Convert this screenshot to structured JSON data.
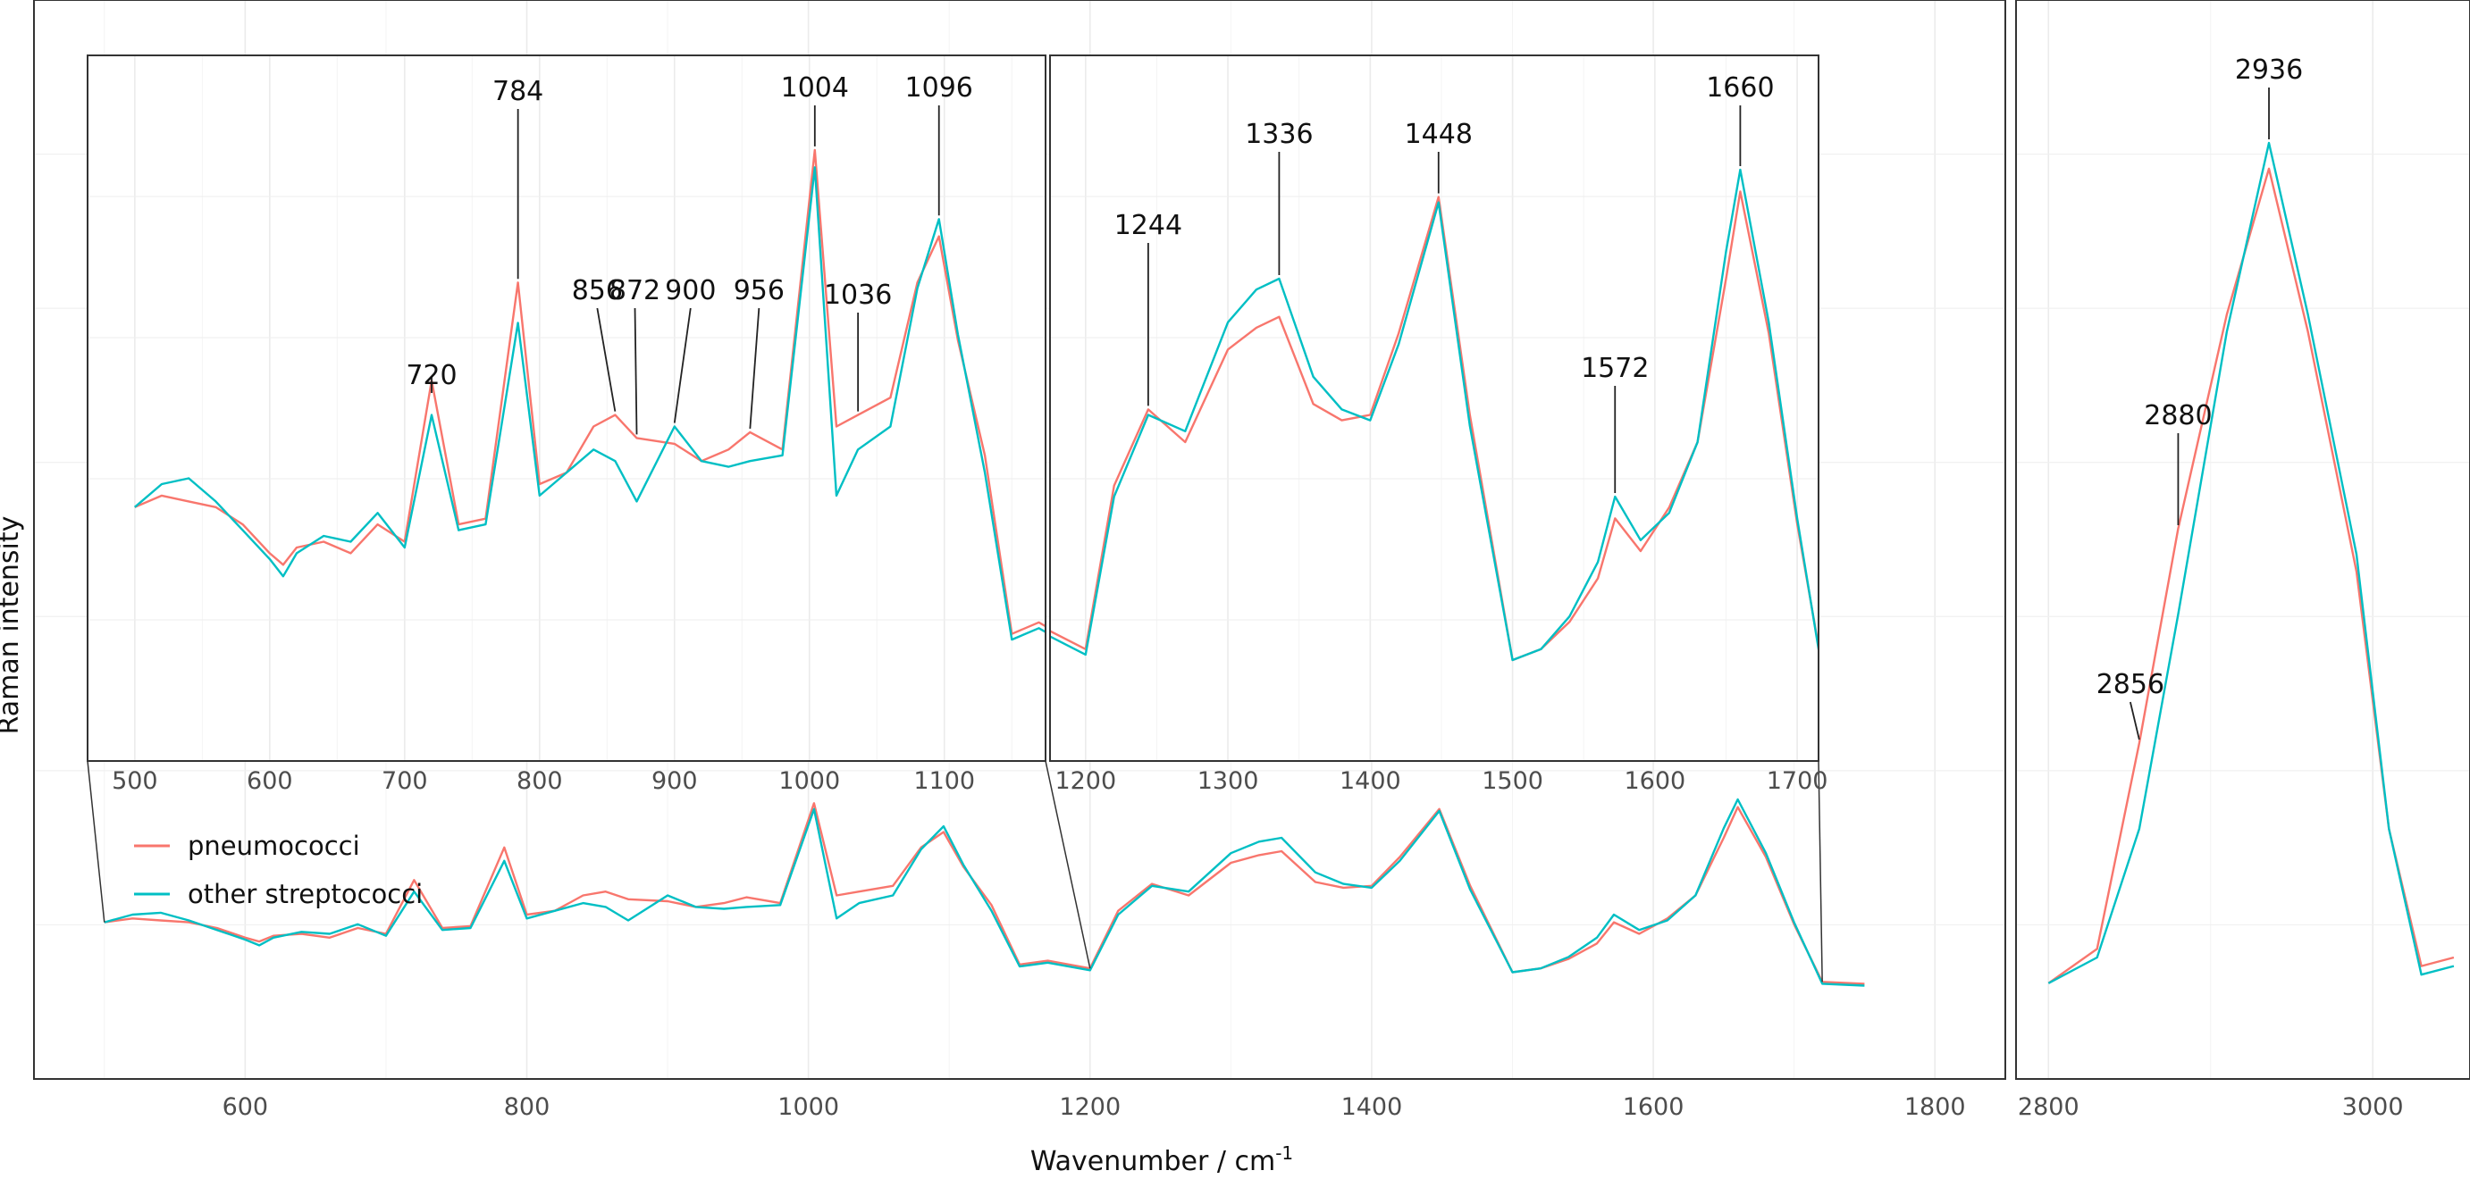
{
  "chart_data": {
    "type": "line",
    "xlabel": "Wavenumber / cm",
    "xlabel_superscript": "-1",
    "ylabel": "Raman intensity",
    "grid": true,
    "legend": {
      "placement": "left",
      "entries": [
        {
          "name": "pneumococci",
          "color": "#F8766D"
        },
        {
          "name": "other streptococci",
          "color": "#00BFC4"
        }
      ]
    },
    "series": [
      {
        "name": "pneumococci",
        "color": "#F8766D",
        "points": [
          [
            500,
            0.36
          ],
          [
            520,
            0.38
          ],
          [
            540,
            0.37
          ],
          [
            560,
            0.36
          ],
          [
            580,
            0.33
          ],
          [
            600,
            0.28
          ],
          [
            610,
            0.26
          ],
          [
            620,
            0.29
          ],
          [
            640,
            0.3
          ],
          [
            660,
            0.28
          ],
          [
            680,
            0.33
          ],
          [
            700,
            0.3
          ],
          [
            720,
            0.58
          ],
          [
            740,
            0.33
          ],
          [
            760,
            0.34
          ],
          [
            784,
            0.75
          ],
          [
            800,
            0.4
          ],
          [
            820,
            0.42
          ],
          [
            840,
            0.5
          ],
          [
            856,
            0.52
          ],
          [
            872,
            0.48
          ],
          [
            900,
            0.47
          ],
          [
            920,
            0.44
          ],
          [
            940,
            0.46
          ],
          [
            956,
            0.49
          ],
          [
            980,
            0.46
          ],
          [
            1004,
            0.98
          ],
          [
            1020,
            0.5
          ],
          [
            1036,
            0.52
          ],
          [
            1060,
            0.55
          ],
          [
            1080,
            0.75
          ],
          [
            1096,
            0.83
          ],
          [
            1110,
            0.65
          ],
          [
            1130,
            0.45
          ],
          [
            1150,
            0.14
          ],
          [
            1170,
            0.16
          ],
          [
            1200,
            0.12
          ],
          [
            1220,
            0.42
          ],
          [
            1244,
            0.56
          ],
          [
            1270,
            0.5
          ],
          [
            1300,
            0.67
          ],
          [
            1320,
            0.71
          ],
          [
            1336,
            0.73
          ],
          [
            1360,
            0.57
          ],
          [
            1380,
            0.54
          ],
          [
            1400,
            0.55
          ],
          [
            1420,
            0.7
          ],
          [
            1448,
            0.95
          ],
          [
            1470,
            0.55
          ],
          [
            1500,
            0.1
          ],
          [
            1520,
            0.12
          ],
          [
            1540,
            0.17
          ],
          [
            1560,
            0.25
          ],
          [
            1572,
            0.36
          ],
          [
            1590,
            0.3
          ],
          [
            1610,
            0.38
          ],
          [
            1630,
            0.5
          ],
          [
            1650,
            0.8
          ],
          [
            1660,
            0.96
          ],
          [
            1680,
            0.7
          ],
          [
            1700,
            0.35
          ],
          [
            1720,
            0.05
          ],
          [
            1750,
            0.04
          ],
          [
            2800,
            0.02
          ],
          [
            2830,
            0.06
          ],
          [
            2856,
            0.3
          ],
          [
            2880,
            0.55
          ],
          [
            2910,
            0.8
          ],
          [
            2936,
            0.97
          ],
          [
            2960,
            0.78
          ],
          [
            2990,
            0.5
          ],
          [
            3010,
            0.2
          ],
          [
            3030,
            0.04
          ],
          [
            3050,
            0.05
          ]
        ]
      },
      {
        "name": "other streptococci",
        "color": "#00BFC4",
        "points": [
          [
            500,
            0.36
          ],
          [
            520,
            0.4
          ],
          [
            540,
            0.41
          ],
          [
            560,
            0.37
          ],
          [
            580,
            0.32
          ],
          [
            600,
            0.27
          ],
          [
            610,
            0.24
          ],
          [
            620,
            0.28
          ],
          [
            640,
            0.31
          ],
          [
            660,
            0.3
          ],
          [
            680,
            0.35
          ],
          [
            700,
            0.29
          ],
          [
            720,
            0.52
          ],
          [
            740,
            0.32
          ],
          [
            760,
            0.33
          ],
          [
            784,
            0.68
          ],
          [
            800,
            0.38
          ],
          [
            820,
            0.42
          ],
          [
            840,
            0.46
          ],
          [
            856,
            0.44
          ],
          [
            872,
            0.37
          ],
          [
            900,
            0.5
          ],
          [
            920,
            0.44
          ],
          [
            940,
            0.43
          ],
          [
            956,
            0.44
          ],
          [
            980,
            0.45
          ],
          [
            1004,
            0.95
          ],
          [
            1020,
            0.38
          ],
          [
            1036,
            0.46
          ],
          [
            1060,
            0.5
          ],
          [
            1080,
            0.74
          ],
          [
            1096,
            0.86
          ],
          [
            1110,
            0.66
          ],
          [
            1130,
            0.42
          ],
          [
            1150,
            0.13
          ],
          [
            1170,
            0.15
          ],
          [
            1200,
            0.11
          ],
          [
            1220,
            0.4
          ],
          [
            1244,
            0.55
          ],
          [
            1270,
            0.52
          ],
          [
            1300,
            0.72
          ],
          [
            1320,
            0.78
          ],
          [
            1336,
            0.8
          ],
          [
            1360,
            0.62
          ],
          [
            1380,
            0.56
          ],
          [
            1400,
            0.54
          ],
          [
            1420,
            0.68
          ],
          [
            1448,
            0.94
          ],
          [
            1470,
            0.53
          ],
          [
            1500,
            0.1
          ],
          [
            1520,
            0.12
          ],
          [
            1540,
            0.18
          ],
          [
            1560,
            0.28
          ],
          [
            1572,
            0.4
          ],
          [
            1590,
            0.32
          ],
          [
            1610,
            0.37
          ],
          [
            1630,
            0.5
          ],
          [
            1650,
            0.85
          ],
          [
            1660,
            1.0
          ],
          [
            1680,
            0.72
          ],
          [
            1700,
            0.36
          ],
          [
            1720,
            0.04
          ],
          [
            1750,
            0.03
          ],
          [
            2800,
            0.02
          ],
          [
            2830,
            0.05
          ],
          [
            2856,
            0.2
          ],
          [
            2880,
            0.45
          ],
          [
            2910,
            0.78
          ],
          [
            2936,
            1.0
          ],
          [
            2960,
            0.8
          ],
          [
            2990,
            0.52
          ],
          [
            3010,
            0.2
          ],
          [
            3030,
            0.03
          ],
          [
            3050,
            0.04
          ]
        ]
      }
    ],
    "panels": [
      {
        "id": "main",
        "xlim": [
          450,
          1850
        ],
        "xticks": [
          600,
          800,
          1000,
          1200,
          1400,
          1600,
          1800
        ]
      },
      {
        "id": "ch-region",
        "xlim": [
          2780,
          3060
        ],
        "xticks": [
          2800,
          3000
        ]
      },
      {
        "id": "inset-low",
        "xlim": [
          465,
          1175
        ],
        "xticks": [
          500,
          600,
          700,
          800,
          900,
          1000,
          1100
        ]
      },
      {
        "id": "inset-high",
        "xlim": [
          1175,
          1715
        ],
        "xticks": [
          1200,
          1300,
          1400,
          1500,
          1600,
          1700
        ]
      }
    ],
    "annotations": [
      {
        "label": "720",
        "x": 720,
        "panel": "inset-low"
      },
      {
        "label": "784",
        "x": 784,
        "panel": "inset-low"
      },
      {
        "label": "856",
        "x": 856,
        "panel": "inset-low"
      },
      {
        "label": "872",
        "x": 872,
        "panel": "inset-low"
      },
      {
        "label": "900",
        "x": 900,
        "panel": "inset-low"
      },
      {
        "label": "956",
        "x": 956,
        "panel": "inset-low"
      },
      {
        "label": "1004",
        "x": 1004,
        "panel": "inset-low"
      },
      {
        "label": "1036",
        "x": 1036,
        "panel": "inset-low"
      },
      {
        "label": "1096",
        "x": 1096,
        "panel": "inset-low"
      },
      {
        "label": "1244",
        "x": 1244,
        "panel": "inset-high"
      },
      {
        "label": "1336",
        "x": 1336,
        "panel": "inset-high"
      },
      {
        "label": "1448",
        "x": 1448,
        "panel": "inset-high"
      },
      {
        "label": "1572",
        "x": 1572,
        "panel": "inset-high"
      },
      {
        "label": "1660",
        "x": 1660,
        "panel": "inset-high"
      },
      {
        "label": "2856",
        "x": 2856,
        "panel": "ch-region"
      },
      {
        "label": "2880",
        "x": 2880,
        "panel": "ch-region"
      },
      {
        "label": "2936",
        "x": 2936,
        "panel": "ch-region"
      }
    ]
  }
}
